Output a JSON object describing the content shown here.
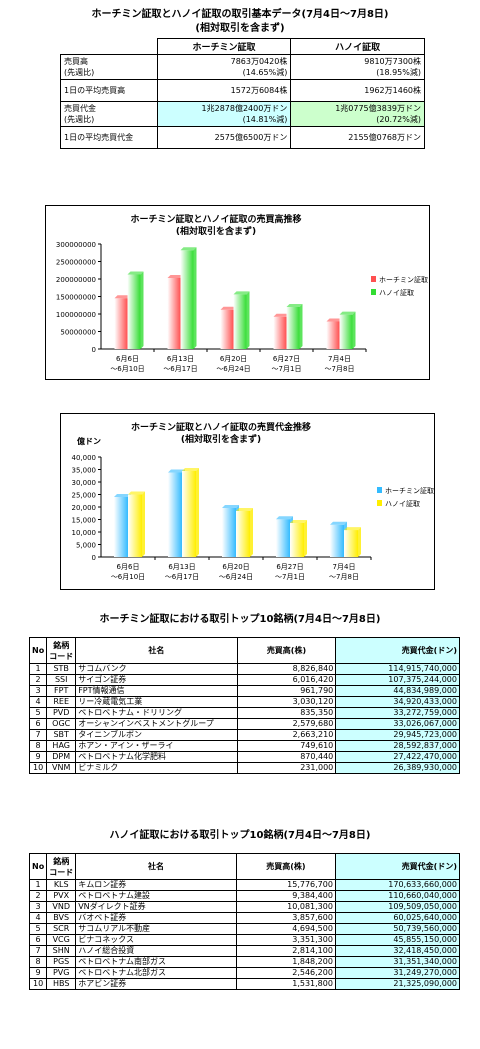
{
  "summary": {
    "title1": "ホーチミン証取とハノイ証取の取引基本データ(7月4日～7月8日)",
    "title2": "(相対取引を含まず)",
    "col_hcm": "ホーチミン証取",
    "col_hn": "ハノイ証取",
    "rows": [
      {
        "label1": "売買高",
        "label2": "(先週比)",
        "hcm1": "7863万0420株",
        "hcm2": "(14.65%減)",
        "hn1": "9810万7300株",
        "hn2": "(18.95%減)",
        "hl": ""
      },
      {
        "label1": "1日の平均売買高",
        "label2": "",
        "hcm1": "1572万6084株",
        "hcm2": "",
        "hn1": "1962万1460株",
        "hn2": "",
        "hl": ""
      },
      {
        "label1": "売買代金",
        "label2": "(先週比)",
        "hcm1": "1兆2878億2400万ドン",
        "hcm2": "(14.81%減)",
        "hn1": "1兆0775億3839万ドン",
        "hn2": "(20.72%減)",
        "hl": "yes"
      },
      {
        "label1": "1日の平均売買代金",
        "label2": "",
        "hcm1": "2575億6500万ドン",
        "hcm2": "",
        "hn1": "2155億0768万ドン",
        "hn2": "",
        "hl": ""
      }
    ]
  },
  "chart_data": [
    {
      "type": "bar",
      "title": "ホーチミン証取とハノイ証取の売買高推移",
      "subtitle": "(相対取引を含まず)",
      "ylabel": "",
      "categories": [
        [
          "6月6日",
          "～6月10日"
        ],
        [
          "6月13日",
          "～6月17日"
        ],
        [
          "6月20日",
          "～6月24日"
        ],
        [
          "6月27日",
          "～7月1日"
        ],
        [
          "7月4日",
          "～7月8日"
        ]
      ],
      "ylim": [
        0,
        300000000
      ],
      "yticks": [
        "0",
        "50000000",
        "100000000",
        "150000000",
        "200000000",
        "250000000",
        "300000000"
      ],
      "series": [
        {
          "name": "ホーチミン証取",
          "values": [
            145000000,
            203000000,
            112000000,
            92000000,
            78630420
          ],
          "color": "#ff5050"
        },
        {
          "name": "ハノイ証取",
          "values": [
            213000000,
            282000000,
            156000000,
            120000000,
            98107300
          ],
          "color": "#33dd33"
        }
      ],
      "legend": "right"
    },
    {
      "type": "bar",
      "title": "ホーチミン証取とハノイ証取の売買代金推移",
      "subtitle": "(相対取引を含まず)",
      "ylabel": "億ドン",
      "categories": [
        [
          "6月6日",
          "～6月10日"
        ],
        [
          "6月13日",
          "～6月17日"
        ],
        [
          "6月20日",
          "～6月24日"
        ],
        [
          "6月27日",
          "～7月1日"
        ],
        [
          "7月4日",
          "～7月8日"
        ]
      ],
      "ylim": [
        0,
        40000
      ],
      "yticks": [
        "0",
        "5,000",
        "10,000",
        "15,000",
        "20,000",
        "25,000",
        "30,000",
        "35,000",
        "40,000"
      ],
      "series": [
        {
          "name": "ホーチミン証取",
          "values": [
            24000,
            33800,
            19600,
            15100,
            12878
          ],
          "color": "#33bbff"
        },
        {
          "name": "ハノイ証取",
          "values": [
            25000,
            34400,
            18400,
            13600,
            10775
          ],
          "color": "#ffee00"
        }
      ],
      "legend": "right"
    }
  ],
  "hcm_top": {
    "title": "ホーチミン証取における取引トップ10銘柄(7月4日～7月8日)",
    "headers": {
      "no": "No",
      "code1": "銘柄",
      "code2": "コード",
      "name": "社名",
      "vol": "売買高(株)",
      "val": "売買代金(ドン)"
    },
    "rows": [
      {
        "no": "1",
        "code": "STB",
        "name": "サコムバンク",
        "vol": "8,826,840",
        "val": "114,915,740,000"
      },
      {
        "no": "2",
        "code": "SSI",
        "name": "サイゴン証券",
        "vol": "6,016,420",
        "val": "107,375,244,000"
      },
      {
        "no": "3",
        "code": "FPT",
        "name": "FPT情報通信",
        "vol": "961,790",
        "val": "44,834,989,000"
      },
      {
        "no": "4",
        "code": "REE",
        "name": "リー冷蔵電気工業",
        "vol": "3,030,120",
        "val": "34,920,433,000"
      },
      {
        "no": "5",
        "code": "PVD",
        "name": "ペトロベトナム・ドリリング",
        "vol": "835,350",
        "val": "33,272,759,000"
      },
      {
        "no": "6",
        "code": "OGC",
        "name": "オーシャンインベストメントグループ",
        "vol": "2,579,680",
        "val": "33,026,067,000"
      },
      {
        "no": "7",
        "code": "SBT",
        "name": "タイニンブルボン",
        "vol": "2,663,210",
        "val": "29,945,723,000"
      },
      {
        "no": "8",
        "code": "HAG",
        "name": "ホアン・アイン・ザーライ",
        "vol": "749,610",
        "val": "28,592,837,000"
      },
      {
        "no": "9",
        "code": "DPM",
        "name": "ペトロベトナム化学肥料",
        "vol": "870,440",
        "val": "27,422,470,000"
      },
      {
        "no": "10",
        "code": "VNM",
        "name": "ビナミルク",
        "vol": "231,000",
        "val": "26,389,930,000"
      }
    ]
  },
  "hn_top": {
    "title": "ハノイ証取における取引トップ10銘柄(7月4日～7月8日)",
    "headers": {
      "no": "No",
      "code1": "銘柄",
      "code2": "コード",
      "name": "社名",
      "vol": "売買高(株)",
      "val": "売買代金(ドン)"
    },
    "rows": [
      {
        "no": "1",
        "code": "KLS",
        "name": "キムロン証券",
        "vol": "15,776,700",
        "val": "170,633,660,000"
      },
      {
        "no": "2",
        "code": "PVX",
        "name": "ペトロベトナム建設",
        "vol": "9,384,400",
        "val": "110,660,040,000"
      },
      {
        "no": "3",
        "code": "VND",
        "name": "VNダイレクト証券",
        "vol": "10,081,300",
        "val": "109,509,050,000"
      },
      {
        "no": "4",
        "code": "BVS",
        "name": "バオベト証券",
        "vol": "3,857,600",
        "val": "60,025,640,000"
      },
      {
        "no": "5",
        "code": "SCR",
        "name": "サコムリアル不動産",
        "vol": "4,694,500",
        "val": "50,739,560,000"
      },
      {
        "no": "6",
        "code": "VCG",
        "name": "ビナコネックス",
        "vol": "3,351,300",
        "val": "45,855,150,000"
      },
      {
        "no": "7",
        "code": "SHN",
        "name": "ハノイ総合投資",
        "vol": "2,814,100",
        "val": "32,418,450,000"
      },
      {
        "no": "8",
        "code": "PGS",
        "name": "ペトロベトナム南部ガス",
        "vol": "1,848,200",
        "val": "31,351,340,000"
      },
      {
        "no": "9",
        "code": "PVG",
        "name": "ペトロベトナム北部ガス",
        "vol": "2,546,200",
        "val": "31,249,270,000"
      },
      {
        "no": "10",
        "code": "HBS",
        "name": "ホアビン証券",
        "vol": "1,531,800",
        "val": "21,325,090,000"
      }
    ]
  }
}
